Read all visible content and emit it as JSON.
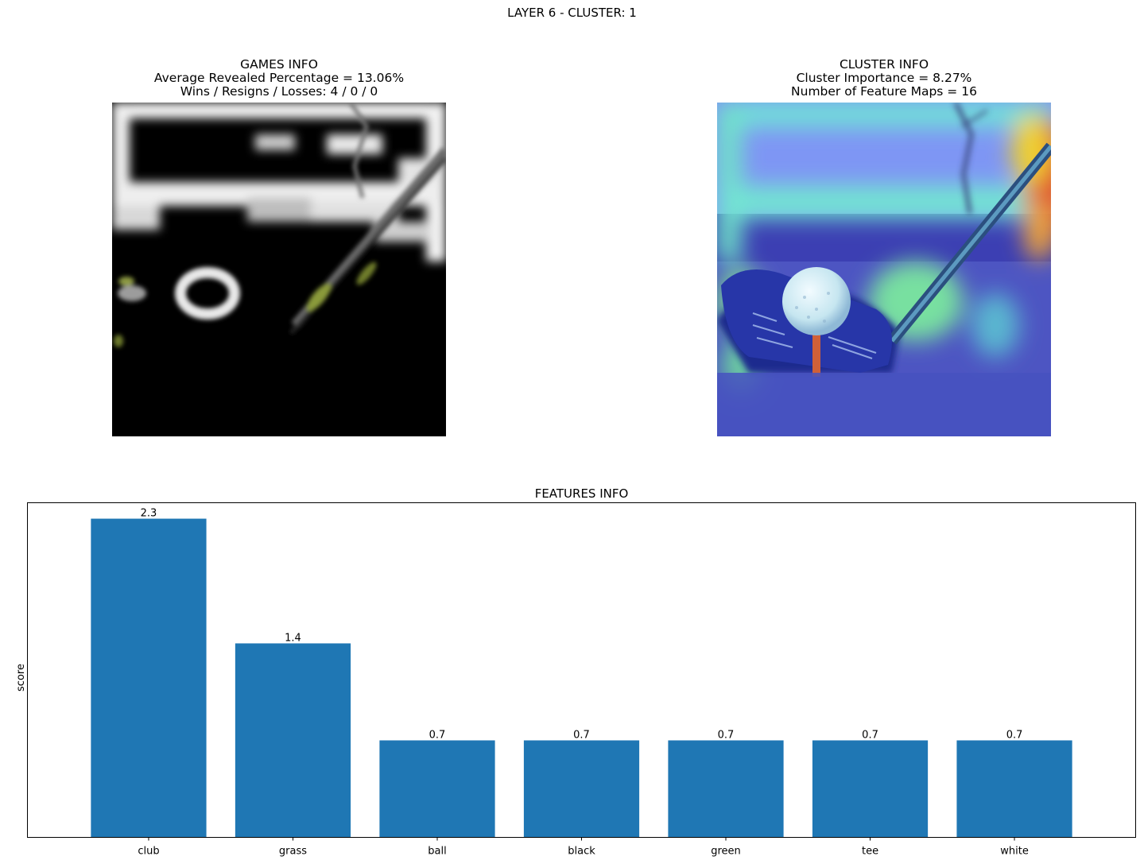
{
  "figure": {
    "suptitle": "LAYER 6 - CLUSTER: 1"
  },
  "games_panel": {
    "title_line1": "GAMES INFO",
    "title_line2": "Average Revealed Percentage = 13.06%",
    "title_line3": "Wins / Resigns / Losses: 4 / 0 / 0",
    "image": "masked-golf-image"
  },
  "cluster_panel": {
    "title_line1": "CLUSTER INFO",
    "title_line2": "Cluster Importance = 8.27%",
    "title_line3": "Number of Feature Maps = 16",
    "image": "heatmap-golf-image"
  },
  "colors": {
    "bar": "#1f77b4",
    "axis": "#000000"
  },
  "chart_data": {
    "type": "bar",
    "title": "FEATURES INFO",
    "categories": [
      "club",
      "grass",
      "ball",
      "black",
      "green",
      "tee",
      "white"
    ],
    "values": [
      2.3,
      1.4,
      0.7,
      0.7,
      0.7,
      0.7,
      0.7
    ],
    "value_labels": [
      "2.3",
      "1.4",
      "0.7",
      "0.7",
      "0.7",
      "0.7",
      "0.7"
    ],
    "xlabel": "",
    "ylabel": "score",
    "ylim": [
      0,
      2.415
    ],
    "grid": false,
    "show_yticks": false
  }
}
